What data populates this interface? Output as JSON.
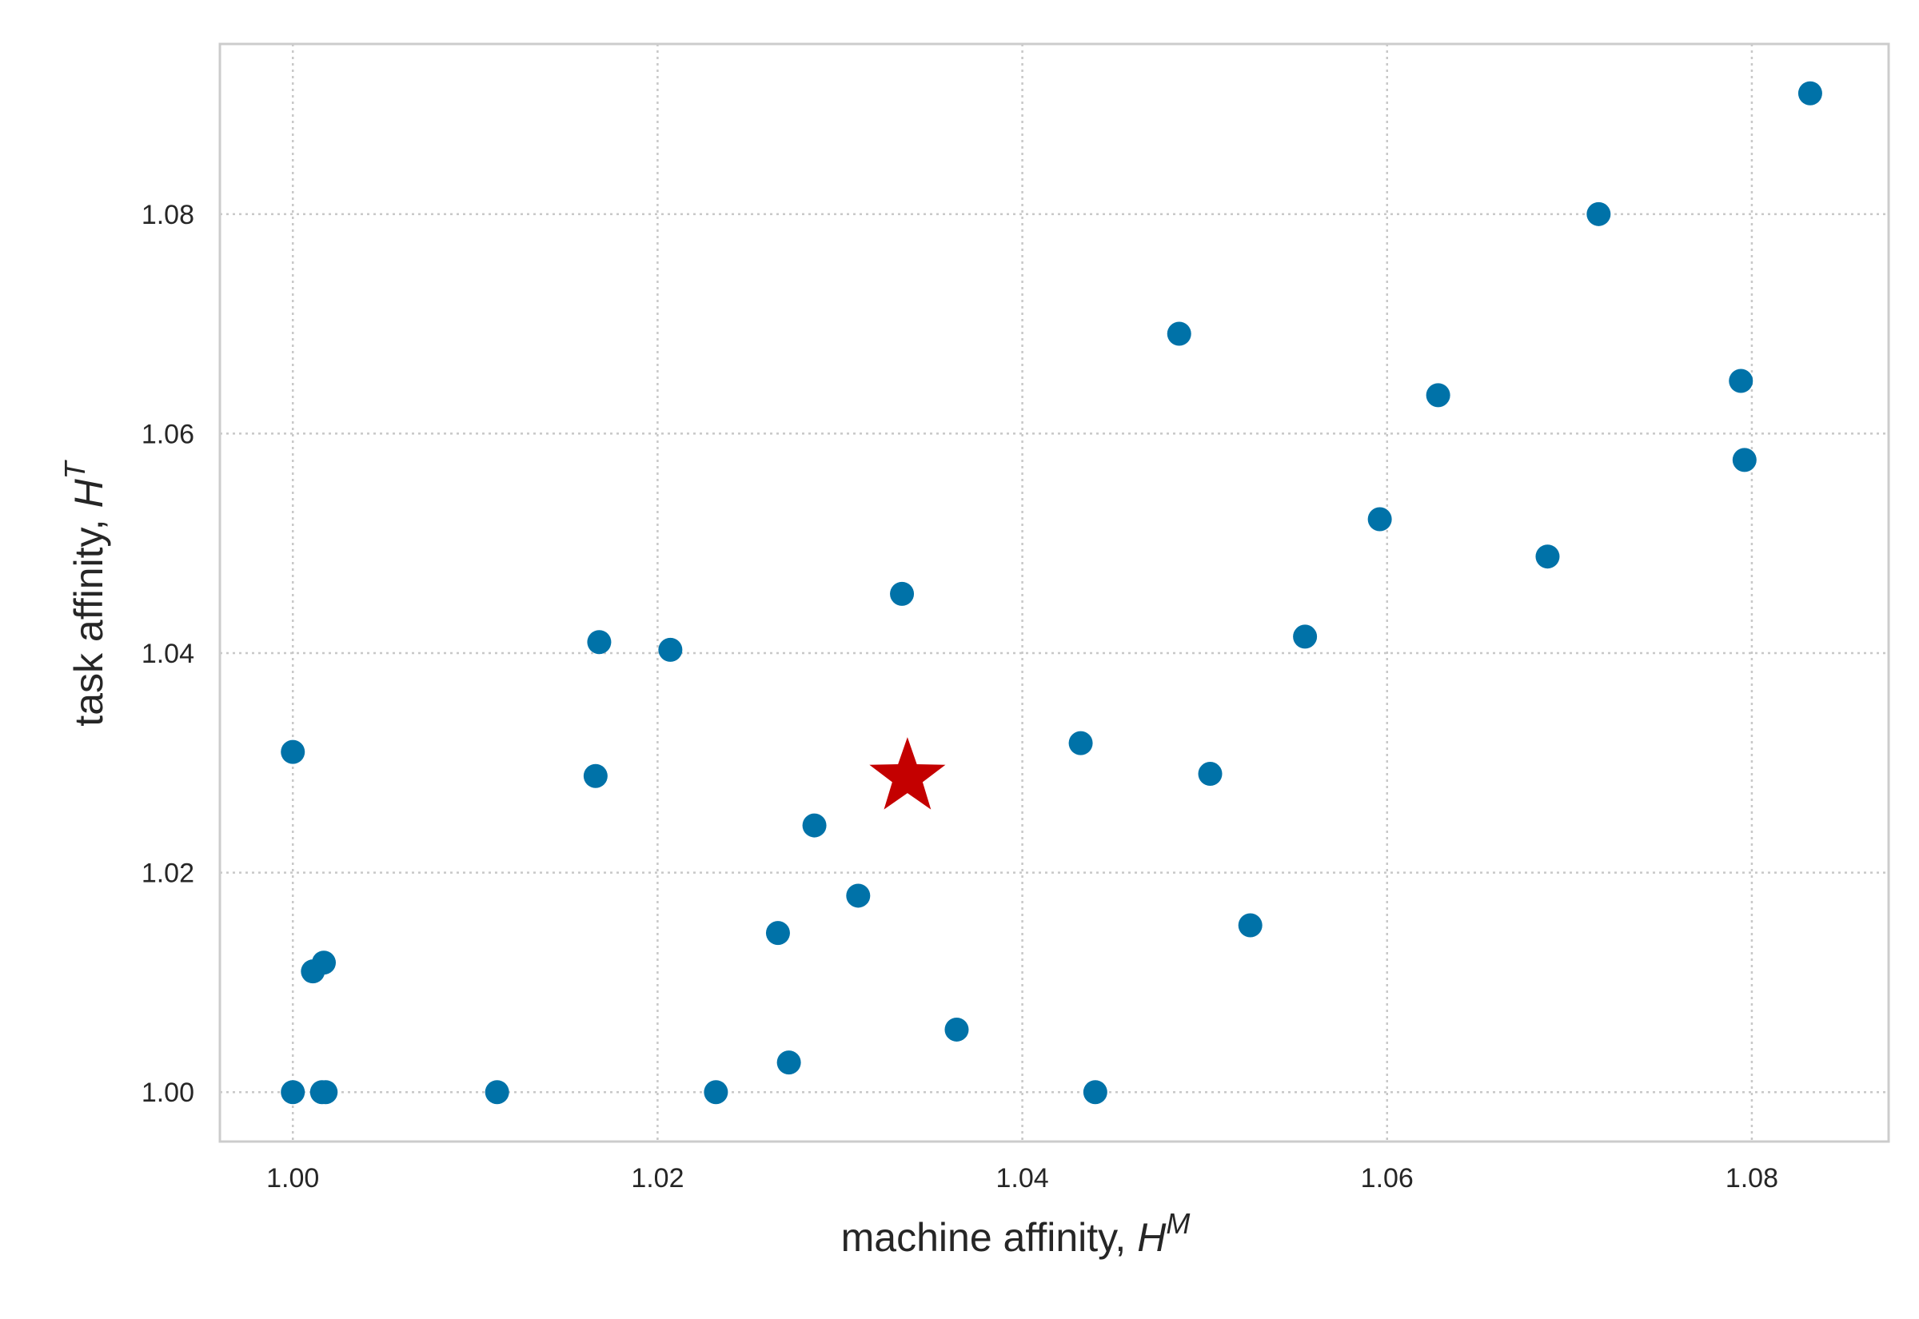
{
  "chart_data": {
    "type": "scatter",
    "xlabel": {
      "text": "machine affinity, ",
      "symbol": "H",
      "sup": "M"
    },
    "ylabel": {
      "text": "task affinity, ",
      "symbol": "H",
      "sup": "T"
    },
    "xlim": [
      0.996,
      1.0875
    ],
    "ylim": [
      0.9955,
      1.0955
    ],
    "xticks": [
      1.0,
      1.02,
      1.04,
      1.06,
      1.08
    ],
    "yticks": [
      1.0,
      1.02,
      1.04,
      1.06,
      1.08
    ],
    "tick_labels_x": [
      "1.00",
      "1.02",
      "1.04",
      "1.06",
      "1.08"
    ],
    "tick_labels_y": [
      "1.00",
      "1.02",
      "1.04",
      "1.06",
      "1.08"
    ],
    "grid": true,
    "colors": {
      "points": "#0072a8",
      "highlight": "#c40000",
      "grid": "#c8c8c8",
      "frame": "#cccccc"
    },
    "series": [
      {
        "marker": "circle",
        "points": [
          [
            1.0,
            1.031
          ],
          [
            1.0,
            1.0
          ],
          [
            1.0011,
            1.011
          ],
          [
            1.0017,
            1.0118
          ],
          [
            1.0016,
            1.0
          ],
          [
            1.0018,
            1.0
          ],
          [
            1.0112,
            1.0
          ],
          [
            1.0166,
            1.0288
          ],
          [
            1.0168,
            1.041
          ],
          [
            1.0207,
            1.0403
          ],
          [
            1.0232,
            1.0
          ],
          [
            1.0266,
            1.0145
          ],
          [
            1.0272,
            1.0027
          ],
          [
            1.0286,
            1.0243
          ],
          [
            1.031,
            1.0179
          ],
          [
            1.0334,
            1.0454
          ],
          [
            1.0364,
            1.0057
          ],
          [
            1.0432,
            1.0318
          ],
          [
            1.044,
            1.0
          ],
          [
            1.0486,
            1.0691
          ],
          [
            1.0503,
            1.029
          ],
          [
            1.0525,
            1.0152
          ],
          [
            1.0555,
            1.0415
          ],
          [
            1.0596,
            1.0522
          ],
          [
            1.0628,
            1.0635
          ],
          [
            1.0688,
            1.0488
          ],
          [
            1.0716,
            1.08
          ],
          [
            1.0794,
            1.0648
          ],
          [
            1.0796,
            1.0576
          ],
          [
            1.0832,
            1.091
          ]
        ]
      },
      {
        "marker": "star",
        "points": [
          [
            1.0337,
            1.0287
          ]
        ]
      }
    ]
  }
}
